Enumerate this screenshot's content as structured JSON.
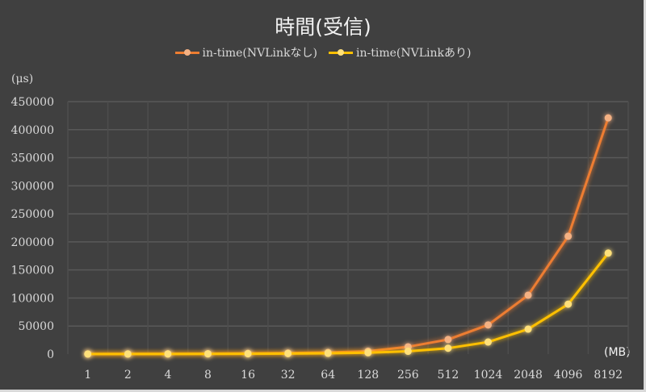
{
  "chart_data": {
    "type": "line",
    "title": "時間(受信)",
    "xlabel": "(MB)",
    "ylabel": "(μs)",
    "ylim": [
      0,
      450000
    ],
    "yticks": [
      0,
      50000,
      100000,
      150000,
      200000,
      250000,
      300000,
      350000,
      400000,
      450000
    ],
    "grid": true,
    "legend_position": "top",
    "categories": [
      "1",
      "2",
      "4",
      "8",
      "16",
      "32",
      "64",
      "128",
      "256",
      "512",
      "1024",
      "2048",
      "4096",
      "8192"
    ],
    "series": [
      {
        "name": "in-time(NVLinkなし)",
        "color": "#ed7d31",
        "marker_color": "#f4b183",
        "values": [
          200,
          300,
          500,
          800,
          1200,
          1800,
          2800,
          5000,
          13000,
          26000,
          52000,
          105000,
          210000,
          421000
        ]
      },
      {
        "name": "in-time(NVLinkあり)",
        "color": "#ffc000",
        "marker_color": "#ffe07a",
        "values": [
          100,
          150,
          250,
          400,
          600,
          900,
          1400,
          2500,
          5000,
          10500,
          21500,
          44500,
          89000,
          180000
        ]
      }
    ]
  },
  "labels": {
    "title": "時間(受信)",
    "y_unit": "(μs)",
    "x_unit": "(MB)",
    "legend_1": "in-time(NVLinkなし)",
    "legend_2": "in-time(NVLinkあり)"
  }
}
